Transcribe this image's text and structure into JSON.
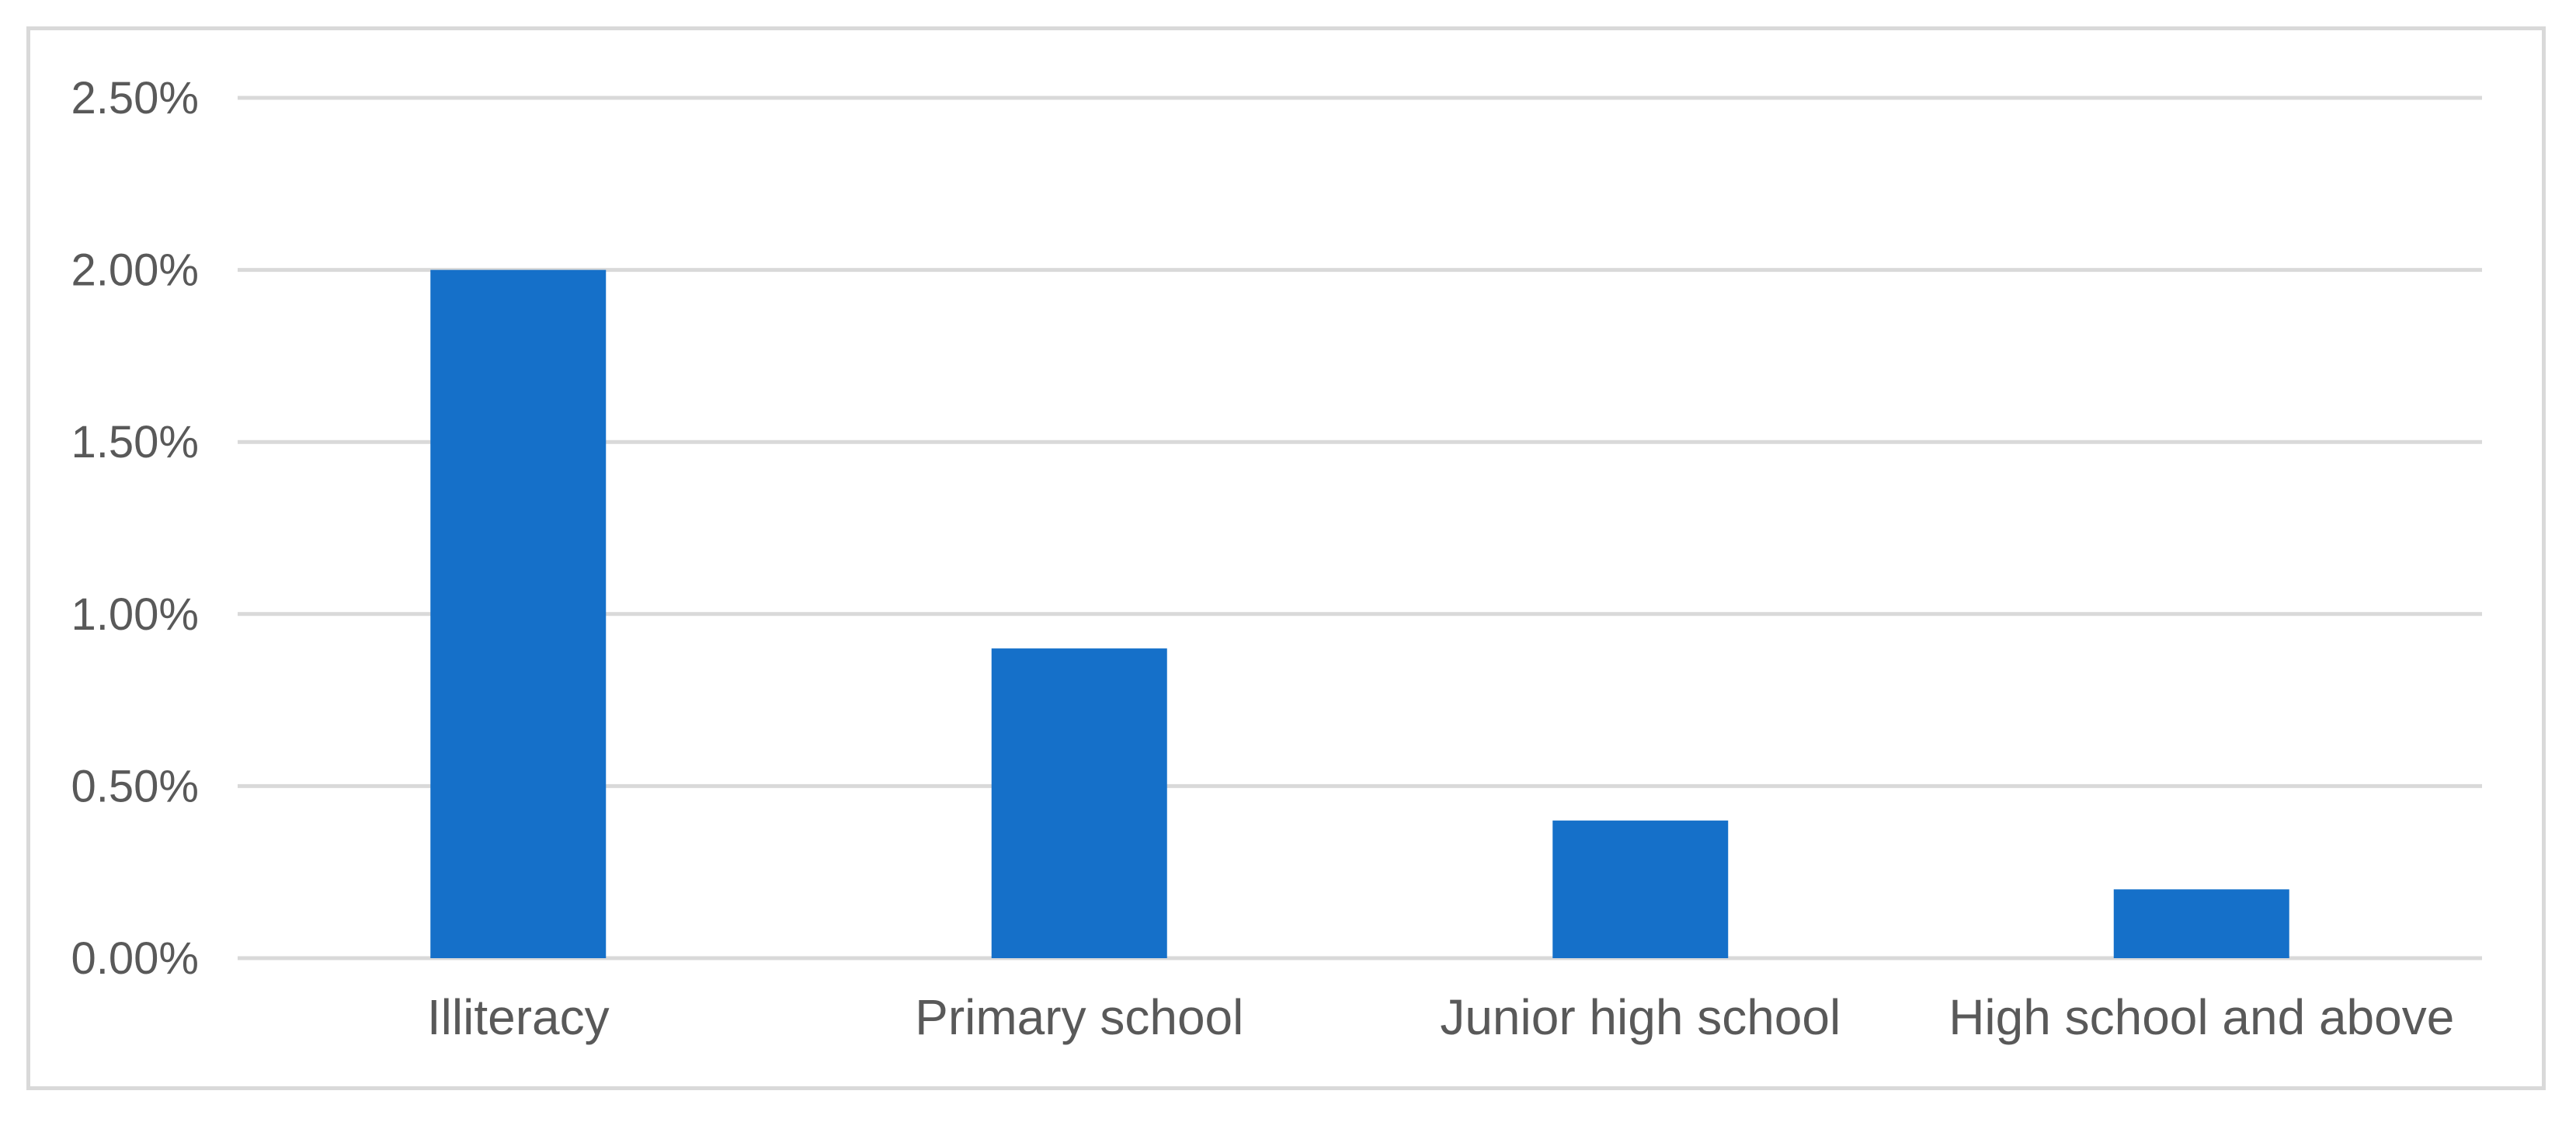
{
  "chart_data": {
    "type": "bar",
    "title": "",
    "xlabel": "",
    "ylabel": "",
    "categories": [
      "Illiteracy",
      "Primary school",
      "Junior high school",
      "High school and above"
    ],
    "values": [
      2.0,
      0.9,
      0.4,
      0.2
    ],
    "unit": "%",
    "ylim": [
      0,
      2.5
    ],
    "yticks": [
      0,
      0.5,
      1.0,
      1.5,
      2.0,
      2.5
    ],
    "ytick_labels": [
      "0.00%",
      "0.50%",
      "1.00%",
      "1.50%",
      "2.00%",
      "2.50%"
    ],
    "grid": true,
    "legend": "none",
    "bar_color": "#1570C9",
    "grid_color": "#D9D9D9",
    "text_color": "#595959"
  }
}
